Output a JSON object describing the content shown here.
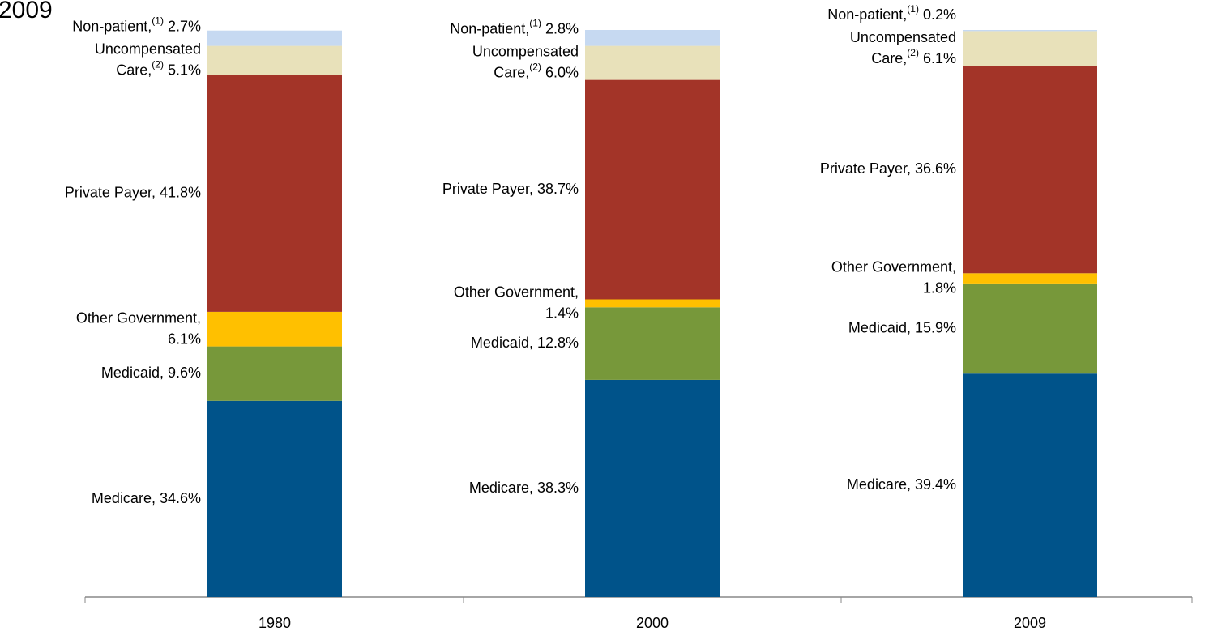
{
  "chart_data": {
    "type": "stacked-bar",
    "title": "2009",
    "categories": [
      "1980",
      "2000",
      "2009"
    ],
    "ylim": [
      0,
      100
    ],
    "series": [
      {
        "color": "#00538a",
        "values": [
          34.6,
          38.3,
          39.4
        ],
        "value_labels": [
          "Medicare, 34.6%",
          "Medicare, 38.3%",
          "Medicare, 39.4%"
        ]
      },
      {
        "color": "#77983a",
        "values": [
          9.6,
          12.8,
          15.9
        ],
        "value_labels": [
          "Medicaid, 9.6%",
          "Medicaid, 12.8%",
          "Medicaid, 15.9%"
        ]
      },
      {
        "color": "#ffc000",
        "values": [
          6.1,
          1.4,
          1.8
        ],
        "value_labels": [
          "Other Government,\n6.1%",
          "Other Government,\n1.4%",
          "Other Government,\n1.8%"
        ]
      },
      {
        "color": "#a33428",
        "values": [
          41.8,
          38.7,
          36.6
        ],
        "value_labels": [
          "Private Payer, 41.8%",
          "Private Payer, 38.7%",
          "Private Payer, 36.6%"
        ]
      },
      {
        "color": "#e8e1ba",
        "values": [
          5.1,
          6.0,
          6.1
        ],
        "value_labels": [
          "Uncompensated\nCare,(2) 5.1%",
          "Uncompensated\nCare,(2) 6.0%",
          "Uncompensated\nCare,(2) 6.1%"
        ]
      },
      {
        "color": "#c6d9f1",
        "values": [
          2.7,
          2.8,
          0.2
        ],
        "value_labels": [
          "Non-patient,(1) 2.7%",
          "Non-patient,(1) 2.8%",
          "Non-patient,(1) 0.2%"
        ]
      }
    ]
  }
}
